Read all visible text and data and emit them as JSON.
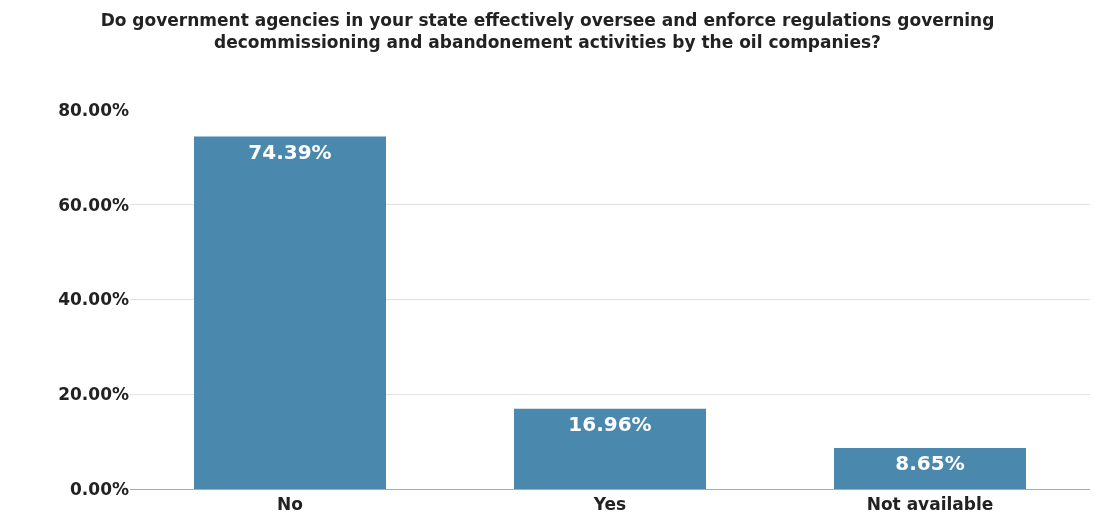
{
  "chart_data": {
    "type": "bar",
    "title": "Do government agencies in your state effectively oversee and enforce regulations governing\ndecommissioning and abandonement activities by the oil companies?",
    "categories": [
      "No",
      "Yes",
      "Not available"
    ],
    "values": [
      74.39,
      16.96,
      8.65
    ],
    "value_labels": [
      "74.39%",
      "16.96%",
      "8.65%"
    ],
    "color": "#4a88ae",
    "ylim": [
      0,
      80
    ],
    "yticks": [
      {
        "value": 0,
        "label": "0.00%"
      },
      {
        "value": 20,
        "label": "20.00%"
      },
      {
        "value": 40,
        "label": "40.00%"
      },
      {
        "value": 60,
        "label": "60.00%"
      },
      {
        "value": 80,
        "label": "80.00%"
      }
    ],
    "grid": "y"
  }
}
